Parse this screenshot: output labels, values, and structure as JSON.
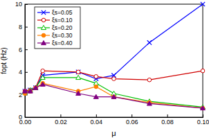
{
  "chart_data": {
    "type": "line",
    "x_label": "μ",
    "y_label": "fopt (Hz)",
    "x": [
      0,
      0.003,
      0.006,
      0.01,
      0.03,
      0.04,
      0.05,
      0.07,
      0.1
    ],
    "series": [
      {
        "name": "ξs=0.05",
        "color": "#0000ff",
        "marker": "x",
        "values": [
          2.3,
          2.4,
          2.6,
          3.7,
          4.0,
          3.4,
          3.7,
          6.6,
          10.0
        ]
      },
      {
        "name": "ξs=0.10",
        "color": "#d00000",
        "marker": "circle-open",
        "values": [
          2.3,
          2.4,
          2.6,
          4.1,
          4.0,
          3.6,
          3.4,
          3.3,
          4.1
        ]
      },
      {
        "name": "ξs=0.20",
        "color": "#00c000",
        "marker": "triangle-open",
        "values": [
          2.2,
          2.4,
          2.6,
          3.5,
          3.5,
          3.0,
          2.1,
          1.4,
          0.9
        ]
      },
      {
        "name": "ξs=0.30",
        "color": "#ff8000",
        "marker": "circle",
        "values": [
          2.1,
          2.3,
          2.6,
          3.0,
          2.3,
          2.7,
          1.8,
          1.3,
          0.8
        ]
      },
      {
        "name": "ξs=0.40",
        "color": "#800080",
        "marker": "triangle",
        "values": [
          2.3,
          2.3,
          2.6,
          2.9,
          2.1,
          1.8,
          1.8,
          1.2,
          0.8
        ]
      }
    ],
    "xlim": [
      0,
      0.1
    ],
    "xticks": [
      {
        "value": 0,
        "label": "0.00"
      },
      {
        "value": 0.02,
        "label": "0.02"
      },
      {
        "value": 0.04,
        "label": "0.04"
      },
      {
        "value": 0.06,
        "label": "0.06"
      },
      {
        "value": 0.08,
        "label": "0.08"
      },
      {
        "value": 0.1,
        "label": "0.10"
      }
    ],
    "ylim": [
      0,
      10
    ],
    "yticks": [
      0,
      2,
      4,
      6,
      8,
      10
    ],
    "legend": "upper-left",
    "grid": false
  }
}
